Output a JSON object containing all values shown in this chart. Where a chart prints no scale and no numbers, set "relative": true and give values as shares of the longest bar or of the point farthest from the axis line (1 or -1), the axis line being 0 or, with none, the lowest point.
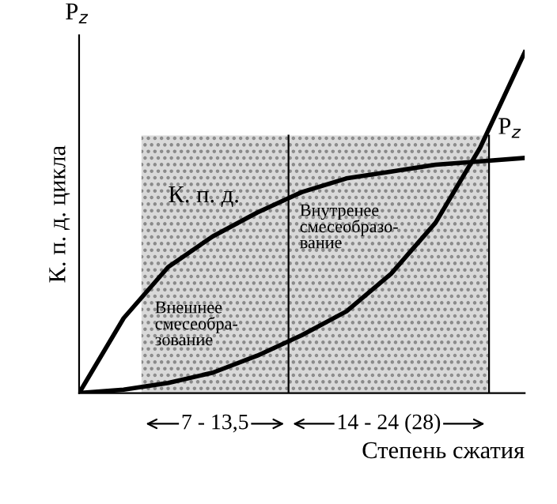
{
  "chart_data": {
    "type": "line",
    "relative": true,
    "legend": false,
    "marker": "none",
    "line_style": "solid",
    "ylabel": "К. п. д. цикла",
    "xlabel": "Степень сжатия",
    "categories": [
      null,
      null,
      null,
      null,
      null,
      null,
      null,
      null,
      null,
      null,
      null
    ],
    "series": [
      {
        "name": "К. п. д.",
        "color": "#000000",
        "values": [
          0,
          0.22,
          0.37,
          0.46,
          0.53,
          0.59,
          0.63,
          0.65,
          0.67,
          0.68,
          0.69
        ]
      },
      {
        "name": "P$_{z}$",
        "color": "#000000",
        "values": [
          0,
          0.01,
          0.03,
          0.06,
          0.11,
          0.17,
          0.24,
          0.35,
          0.5,
          0.72,
          1
        ]
      }
    ],
    "annotations": [
      "P$_{z}$",
      "Внешнее\nсмесеобра-\nзование",
      "Внутренее\nсмесеобразо-\nвание",
      "7 - 13,5",
      "14 - 24 (28)"
    ]
  }
}
